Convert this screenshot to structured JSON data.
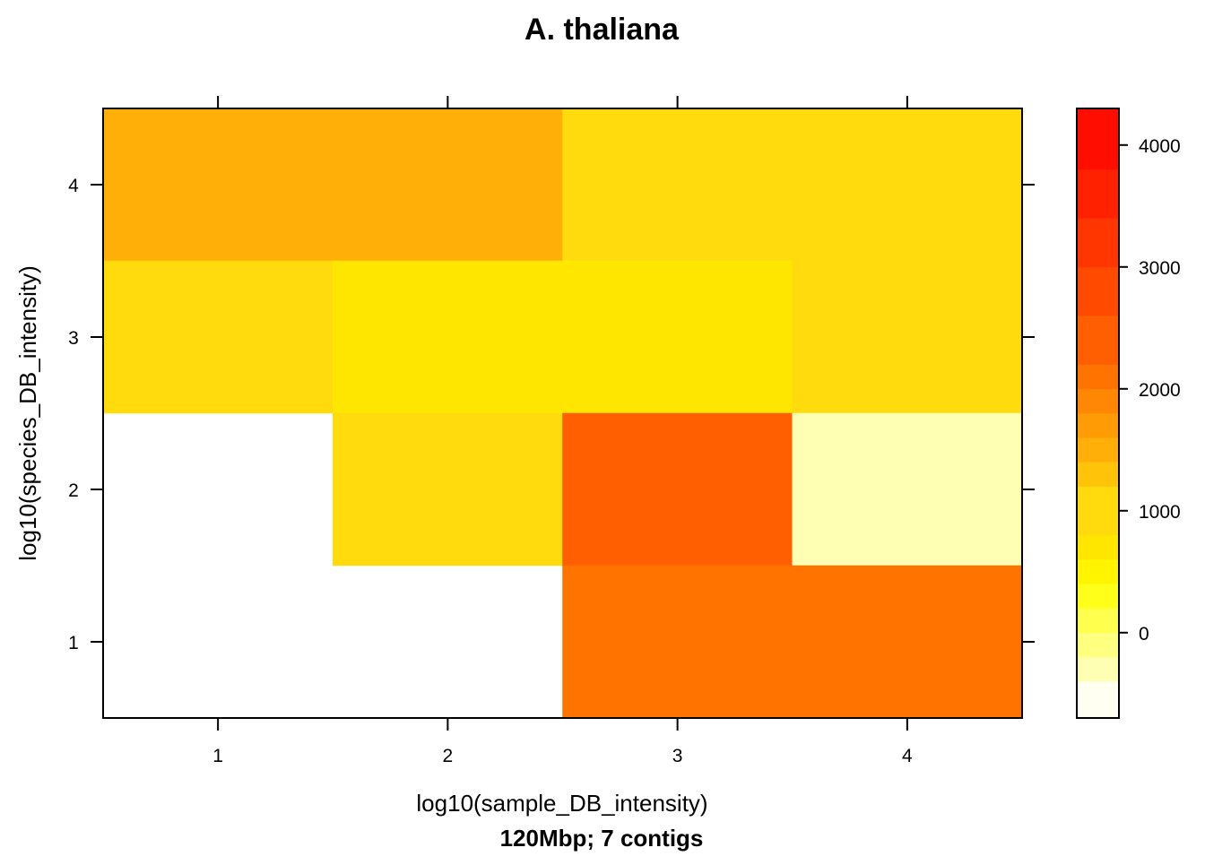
{
  "chart_data": {
    "type": "heatmap",
    "title": "A. thaliana",
    "xlabel": "log10(sample_DB_intensity)",
    "ylabel": "log10(species_DB_intensity)",
    "subtitle": "120Mbp; 7 contigs",
    "x_ticks": [
      1,
      2,
      3,
      4
    ],
    "y_ticks": [
      1,
      2,
      3,
      4
    ],
    "xlim": [
      0.5,
      4.5
    ],
    "ylim": [
      0.5,
      4.5
    ],
    "cells": [
      {
        "x": 1,
        "y": 4,
        "value": 1400
      },
      {
        "x": 2,
        "y": 4,
        "value": 1400
      },
      {
        "x": 3,
        "y": 4,
        "value": 1000
      },
      {
        "x": 4,
        "y": 4,
        "value": 1000
      },
      {
        "x": 1,
        "y": 3,
        "value": 1000
      },
      {
        "x": 2,
        "y": 3,
        "value": 700
      },
      {
        "x": 3,
        "y": 3,
        "value": 700
      },
      {
        "x": 4,
        "y": 3,
        "value": 1000
      },
      {
        "x": 1,
        "y": 2,
        "value": null
      },
      {
        "x": 2,
        "y": 2,
        "value": 1000
      },
      {
        "x": 3,
        "y": 2,
        "value": 2500
      },
      {
        "x": 4,
        "y": 2,
        "value": -300
      },
      {
        "x": 1,
        "y": 1,
        "value": null
      },
      {
        "x": 2,
        "y": 1,
        "value": null
      },
      {
        "x": 3,
        "y": 1,
        "value": 2100
      },
      {
        "x": 4,
        "y": 1,
        "value": 2100
      }
    ],
    "colorbar": {
      "range": [
        -700,
        4300
      ],
      "step": 200,
      "ticks": [
        0,
        1000,
        2000,
        3000,
        4000
      ],
      "colors": [
        "#FFFFF2",
        "#FFFFB3",
        "#FFFF80",
        "#FFFF4D",
        "#FFFF1A",
        "#FFF500",
        "#FFE600",
        "#FFDB0D",
        "#FFC30A",
        "#FFAF07",
        "#FF9B05",
        "#FF8703",
        "#FF7300",
        "#FF5F00",
        "#FF4A00",
        "#FF3600",
        "#FF2100",
        "#FF0E00"
      ],
      "color_boundaries": [
        -700,
        -400,
        -200,
        0,
        200,
        400,
        600,
        800,
        1200,
        1400,
        1600,
        1800,
        2000,
        2200,
        2600,
        3000,
        3400,
        3800,
        4300
      ]
    }
  }
}
